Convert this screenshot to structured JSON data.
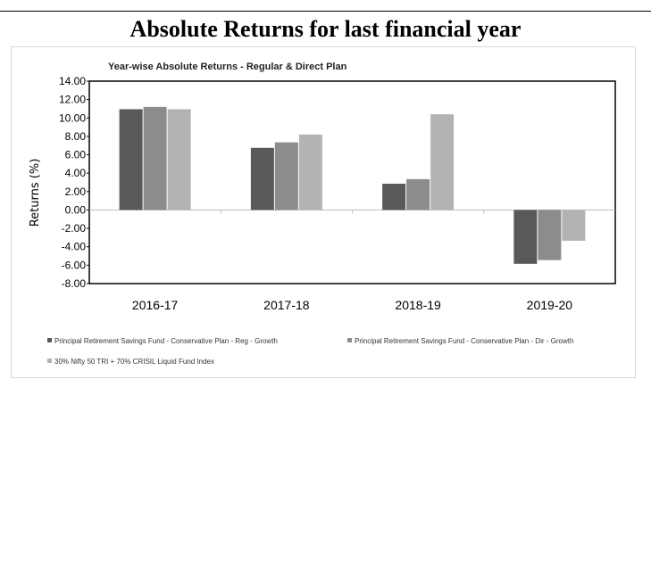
{
  "page": {
    "section_title": "Absolute Returns for last financial year"
  },
  "chart_data": {
    "type": "bar",
    "title": "Year-wise Absolute Returns - Regular & Direct Plan",
    "xlabel": "",
    "ylabel": "Returns (%)",
    "ylim": [
      -8,
      14
    ],
    "ytick_step": 2,
    "yticks": [
      "14.00",
      "12.00",
      "10.00",
      "8.00",
      "6.00",
      "4.00",
      "2.00",
      "0.00",
      "-2.00",
      "-4.00",
      "-6.00",
      "-8.00"
    ],
    "categories": [
      "2016-17",
      "2017-18",
      "2018-19",
      "2019-20"
    ],
    "legend_position": "bottom",
    "grid": false,
    "series": [
      {
        "name": "Principal Retirement Savings Fund - Conservative Plan - Reg - Growth",
        "color": "#595959",
        "values": [
          10.95,
          6.75,
          2.85,
          -5.85
        ]
      },
      {
        "name": "Principal Retirement Savings Fund - Conservative Plan - Dir - Growth",
        "color": "#8c8c8c",
        "values": [
          11.2,
          7.35,
          3.35,
          -5.45
        ]
      },
      {
        "name": "30% Nifty 50 TRI + 70% CRISIL Liquid Fund Index",
        "color": "#b3b3b3",
        "values": [
          10.95,
          8.2,
          10.4,
          -3.35
        ]
      }
    ]
  }
}
